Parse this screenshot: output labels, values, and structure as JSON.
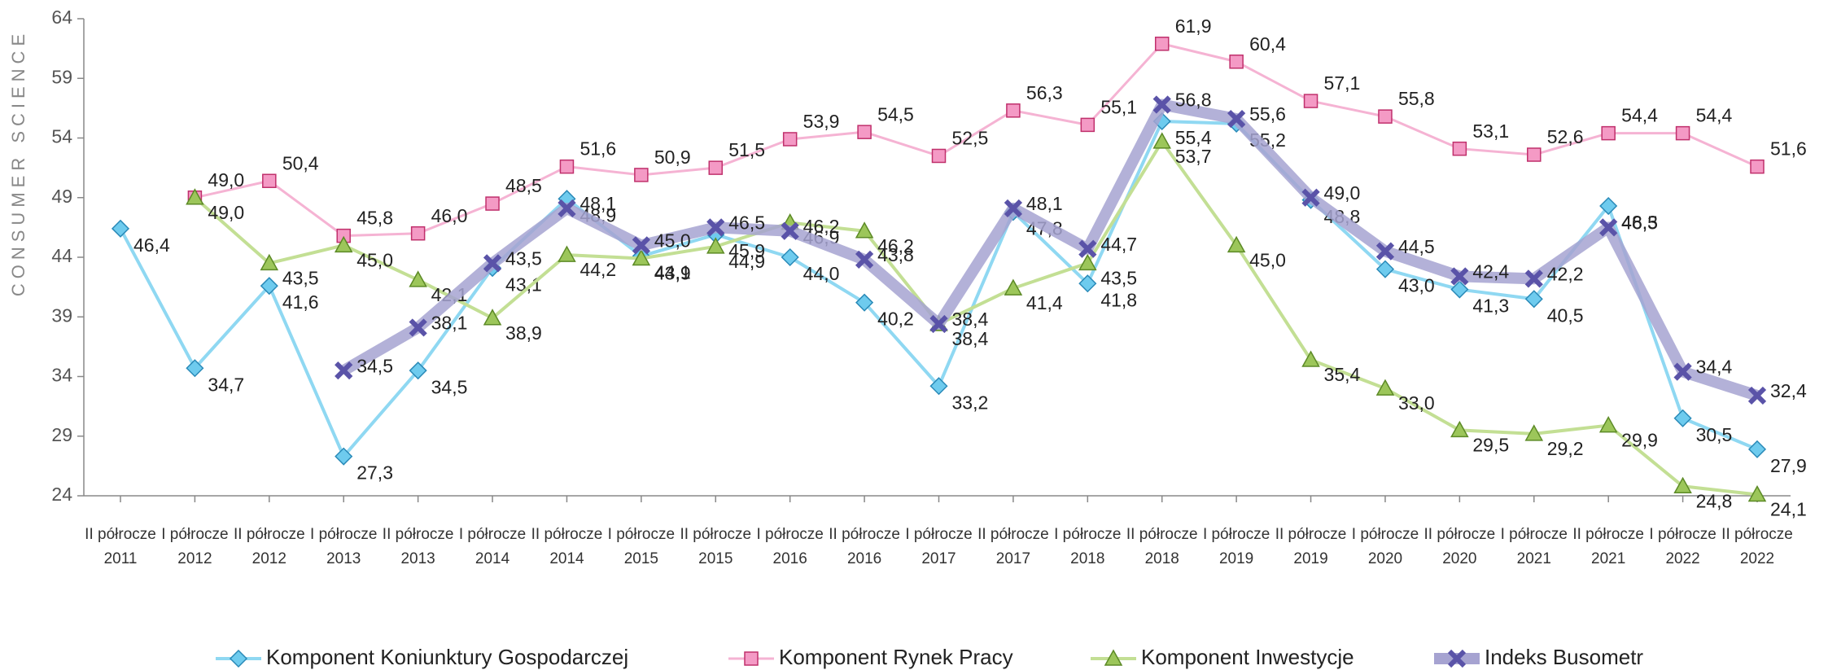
{
  "chart_data": {
    "type": "line",
    "y_axis_label": "CONSUMER SCIENCE",
    "categories": [
      "II półrocze 2011",
      "I półrocze 2012",
      "II półrocze 2012",
      "I półrocze 2013",
      "II półrocze 2013",
      "I półrocze 2014",
      "II półrocze 2014",
      "I półrocze 2015",
      "II półrocze 2015",
      "I półrocze 2016",
      "II półrocze 2016",
      "I półrocze 2017",
      "II półrocze 2017",
      "I półrocze 2018",
      "II półrocze 2018",
      "I półrocze 2019",
      "II półrocze 2019",
      "I półrocze 2020",
      "II półrocze 2020",
      "I półrocze 2021",
      "II półrocze 2021",
      "I półrocze 2022",
      "II półrocze 2022"
    ],
    "ylim": [
      24,
      64
    ],
    "yticks": [
      24,
      29,
      34,
      39,
      44,
      49,
      54,
      59,
      64
    ],
    "legend": "bottom",
    "series": [
      {
        "name": "Komponent Koniunktury Gospodarczej",
        "color": "#8fd8f2",
        "marker": "diamond",
        "values": [
          46.4,
          34.7,
          41.6,
          27.3,
          34.5,
          43.1,
          48.9,
          44.1,
          45.9,
          44.0,
          40.2,
          33.2,
          47.8,
          41.8,
          55.4,
          55.2,
          48.8,
          43.0,
          41.3,
          40.5,
          48.3,
          30.5,
          27.9
        ],
        "value_labels": [
          "46,4",
          "34,7",
          "41,6",
          "27,3",
          "34,5",
          "43,1",
          "48,9",
          "44,1",
          "45,9",
          "44,0",
          "40,2",
          "33,2",
          "47,8",
          "41,8",
          "55,4",
          "55,2",
          "48,8",
          "43,0",
          "41,3",
          "40,5",
          "48,3",
          "30,5",
          "27,9"
        ]
      },
      {
        "name": "Komponent Rynek Pracy",
        "color": "#f5b3d3",
        "marker": "square",
        "values": [
          null,
          49.0,
          50.4,
          45.8,
          46.0,
          48.5,
          51.6,
          50.9,
          51.5,
          53.9,
          54.5,
          52.5,
          56.3,
          55.1,
          61.9,
          60.4,
          57.1,
          55.8,
          53.1,
          52.6,
          54.4,
          54.4,
          51.6
        ],
        "value_labels": [
          null,
          "49,0",
          "50,4",
          "45,8",
          "46,0",
          "48,5",
          "51,6",
          "50,9",
          "51,5",
          "53,9",
          "54,5",
          "52,5",
          "56,3",
          "55,1",
          "61,9",
          "60,4",
          "57,1",
          "55,8",
          "53,1",
          "52,6",
          "54,4",
          "54,4",
          "51,6"
        ]
      },
      {
        "name": "Komponent Inwestycje",
        "color": "#c3df94",
        "marker": "triangle",
        "values": [
          null,
          49.0,
          43.5,
          45.0,
          42.1,
          38.9,
          44.2,
          43.9,
          44.9,
          46.9,
          46.2,
          38.4,
          41.4,
          43.5,
          53.7,
          45.0,
          35.4,
          33.0,
          29.5,
          29.2,
          29.9,
          24.8,
          24.1
        ],
        "value_labels": [
          null,
          "49,0",
          "43,5",
          "45,0",
          "42,1",
          "38,9",
          "44,2",
          "43,9",
          "44,9",
          "46,9",
          "46,2",
          "38,4",
          "41,4",
          "43,5",
          "53,7",
          "45,0",
          "35,4",
          "33,0",
          "29,5",
          "29,2",
          "29,9",
          "24,8",
          "24,1"
        ]
      },
      {
        "name": "Indeks Busometr",
        "color": "#a6a3d1",
        "marker": "x",
        "values": [
          null,
          null,
          null,
          34.5,
          38.1,
          43.5,
          48.1,
          45.0,
          46.5,
          46.2,
          43.8,
          38.4,
          48.1,
          44.7,
          56.8,
          55.6,
          49.0,
          44.5,
          42.4,
          42.2,
          46.5,
          34.4,
          32.4
        ],
        "value_labels": [
          null,
          null,
          null,
          "34,5",
          "38,1",
          "43,5",
          "48,1",
          "45,0",
          "46,5",
          "46,2",
          "43,8",
          "38,4",
          "48,1",
          "44,7",
          "56,8",
          "55,6",
          "49,0",
          "44,5",
          "42,4",
          "42,2",
          "46,5",
          "34,4",
          "32,4"
        ]
      }
    ]
  }
}
